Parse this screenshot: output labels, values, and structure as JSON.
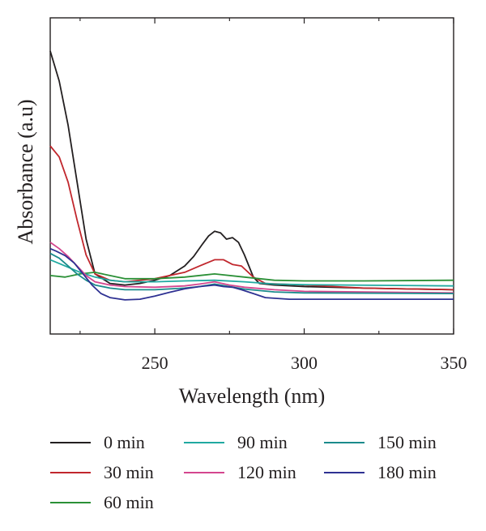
{
  "chart_data": {
    "type": "line",
    "title": "",
    "xlabel": "Wavelength (nm)",
    "ylabel": "Absorbance (a.u)",
    "xlim": [
      215,
      350
    ],
    "ylim": [
      0,
      1
    ],
    "x_ticks": [
      250,
      300,
      350
    ],
    "x_minor_ticks": [
      225,
      275,
      325
    ],
    "grid": false,
    "legend_position": "bottom",
    "series": [
      {
        "name": "0 min",
        "color": "#231f20",
        "x": [
          215,
          218,
          221,
          224,
          227,
          230,
          235,
          240,
          245,
          250,
          255,
          260,
          263,
          266,
          268,
          270,
          272,
          274,
          276,
          278,
          280,
          283,
          285,
          290,
          300,
          320,
          350
        ],
        "y": [
          0.895,
          0.8,
          0.66,
          0.48,
          0.3,
          0.19,
          0.16,
          0.155,
          0.16,
          0.17,
          0.185,
          0.215,
          0.245,
          0.285,
          0.31,
          0.325,
          0.32,
          0.3,
          0.305,
          0.29,
          0.25,
          0.18,
          0.16,
          0.155,
          0.15,
          0.145,
          0.14
        ]
      },
      {
        "name": "30 min",
        "color": "#c1272d",
        "x": [
          215,
          218,
          221,
          224,
          227,
          230,
          235,
          240,
          250,
          260,
          265,
          270,
          273,
          276,
          279,
          283,
          287,
          300,
          320,
          350
        ],
        "y": [
          0.595,
          0.56,
          0.48,
          0.36,
          0.25,
          0.19,
          0.17,
          0.165,
          0.175,
          0.195,
          0.215,
          0.235,
          0.235,
          0.22,
          0.215,
          0.18,
          0.16,
          0.155,
          0.145,
          0.14
        ]
      },
      {
        "name": "60 min",
        "color": "#2b9037",
        "x": [
          215,
          220,
          225,
          230,
          235,
          240,
          250,
          260,
          270,
          280,
          290,
          300,
          320,
          350
        ],
        "y": [
          0.185,
          0.18,
          0.19,
          0.195,
          0.185,
          0.175,
          0.175,
          0.18,
          0.19,
          0.18,
          0.17,
          0.168,
          0.168,
          0.17
        ]
      },
      {
        "name": "90 min",
        "color": "#20a9a1",
        "x": [
          215,
          220,
          225,
          230,
          235,
          240,
          250,
          260,
          270,
          280,
          290,
          300,
          350
        ],
        "y": [
          0.235,
          0.215,
          0.195,
          0.18,
          0.17,
          0.165,
          0.165,
          0.168,
          0.17,
          0.165,
          0.158,
          0.156,
          0.152
        ]
      },
      {
        "name": "120 min",
        "color": "#d4468e",
        "x": [
          215,
          218,
          221,
          224,
          227,
          230,
          235,
          240,
          250,
          260,
          265,
          270,
          275,
          280,
          290,
          300,
          350
        ],
        "y": [
          0.29,
          0.27,
          0.245,
          0.215,
          0.185,
          0.165,
          0.155,
          0.15,
          0.148,
          0.152,
          0.158,
          0.165,
          0.155,
          0.148,
          0.14,
          0.135,
          0.13
        ]
      },
      {
        "name": "150 min",
        "color": "#1b8b8c",
        "x": [
          215,
          218,
          221,
          224,
          227,
          230,
          235,
          240,
          250,
          260,
          265,
          270,
          275,
          280,
          290,
          300,
          350
        ],
        "y": [
          0.255,
          0.24,
          0.215,
          0.19,
          0.17,
          0.155,
          0.145,
          0.14,
          0.14,
          0.145,
          0.15,
          0.158,
          0.15,
          0.142,
          0.133,
          0.13,
          0.128
        ]
      },
      {
        "name": "180 min",
        "color": "#2e3192",
        "x": [
          215,
          217,
          220,
          223,
          226,
          229,
          232,
          235,
          240,
          245,
          250,
          255,
          260,
          265,
          270,
          273,
          276,
          279,
          283,
          287,
          295,
          300,
          320,
          350
        ],
        "y": [
          0.27,
          0.262,
          0.248,
          0.225,
          0.19,
          0.155,
          0.128,
          0.115,
          0.108,
          0.11,
          0.12,
          0.132,
          0.143,
          0.15,
          0.155,
          0.15,
          0.148,
          0.14,
          0.128,
          0.115,
          0.11,
          0.11,
          0.11,
          0.11
        ]
      }
    ]
  }
}
